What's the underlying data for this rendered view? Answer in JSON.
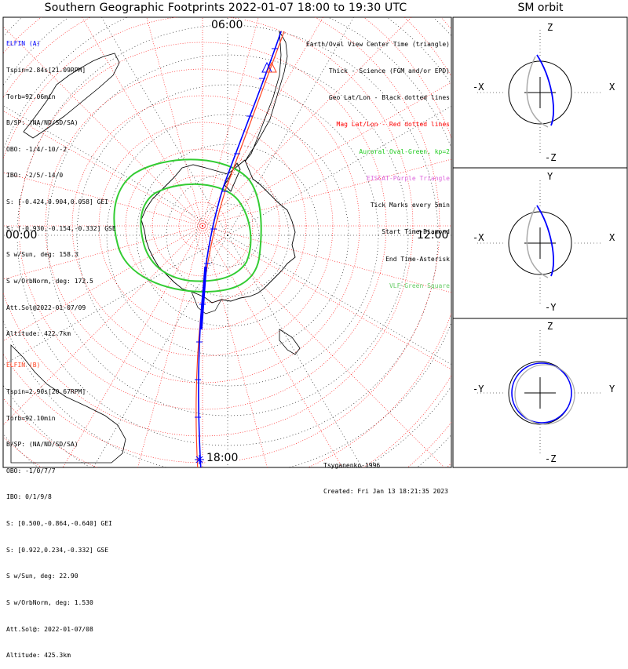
{
  "title": "Southern Geographic Footprints 2022-01-07 18:00 to 19:30 UTC",
  "side_title": "SM orbit",
  "clock_labels": {
    "top": "06:00",
    "left": "00:00",
    "right": "12:00",
    "bottom": "18:00"
  },
  "elfin_a": {
    "name": "ELFIN (A)",
    "color": "#0000ff",
    "lines": [
      "Tspin=2.84s[21.09RPM]",
      "Torb=92.06min",
      "B/SP: (NA/ND/SD/SA)",
      "OBO: -1/4/-10/-2",
      "IBO: -2/5/-14/0",
      "S: [-0.424,0.904,0.058] GEI",
      "S: [-0.930,-0.154,-0.332] GSE",
      "S w/Sun, deg: 158.3",
      "S w/OrbNorm, deg: 172.5",
      "Att.Sol@2022-01-07/09",
      "Altitude: 422.7km"
    ]
  },
  "elfin_b": {
    "name": "ELFIN (B)",
    "color": "#ff4422",
    "lines": [
      "Tspin=2.90s[20.67RPM]",
      "Torb=92.10min",
      "B/SP: (NA/ND/SD/SA)",
      "OBO: -1/0/7/7",
      "IBO: 0/1/9/8",
      "S: [0.500,-0.864,-0.640] GEI",
      "S: [0.922,0.234,-0.332] GSE",
      "S w/Sun, deg: 22.90",
      "S w/OrbNorm, deg: 1.530",
      "Att.Sol@: 2022-01-07/08",
      "Altitude: 425.3km"
    ]
  },
  "legend": [
    {
      "text": "Earth/Oval View Center Time (triangle)",
      "color": "#000000"
    },
    {
      "text": "Thick - Science (FGM and/or EPD)",
      "color": "#000000"
    },
    {
      "text": "Geo Lat/Lon - Black dotted lines",
      "color": "#000000"
    },
    {
      "text": "Mag Lat/Lon - Red dotted lines",
      "color": "#ff0000"
    },
    {
      "text": "Auroral Oval-Green, kp=2",
      "color": "#22cc22"
    },
    {
      "text": "EISCAT-Purple Triangle",
      "color": "#dd66dd"
    },
    {
      "text": "Tick Marks every 5min",
      "color": "#000000"
    },
    {
      "text": "Start Time-Diamond",
      "color": "#000000"
    },
    {
      "text": "End Time-Asterisk",
      "color": "#000000"
    },
    {
      "text": "VLF-Green Square",
      "color": "#66cc66"
    }
  ],
  "credit": {
    "author": "Tsyganenko-1996",
    "created": "Created: Fri Jan 13 18:21:35 2023"
  },
  "panels": [
    {
      "name": "xz",
      "top_label": "Z",
      "bottom_label": "-Z",
      "left_label": "-X",
      "right_label": "X"
    },
    {
      "name": "xy",
      "top_label": "Y",
      "bottom_label": "-Y",
      "left_label": "-X",
      "right_label": "X"
    },
    {
      "name": "yz",
      "top_label": "Z",
      "bottom_label": "-Z",
      "left_label": "-Y",
      "right_label": "Y"
    }
  ],
  "colors": {
    "elfin_a": "#0000ff",
    "elfin_b": "#ff4422",
    "oval": "#33cc33",
    "mag_grid": "#ff0000",
    "geo_grid": "#000000",
    "coast": "#000000"
  }
}
